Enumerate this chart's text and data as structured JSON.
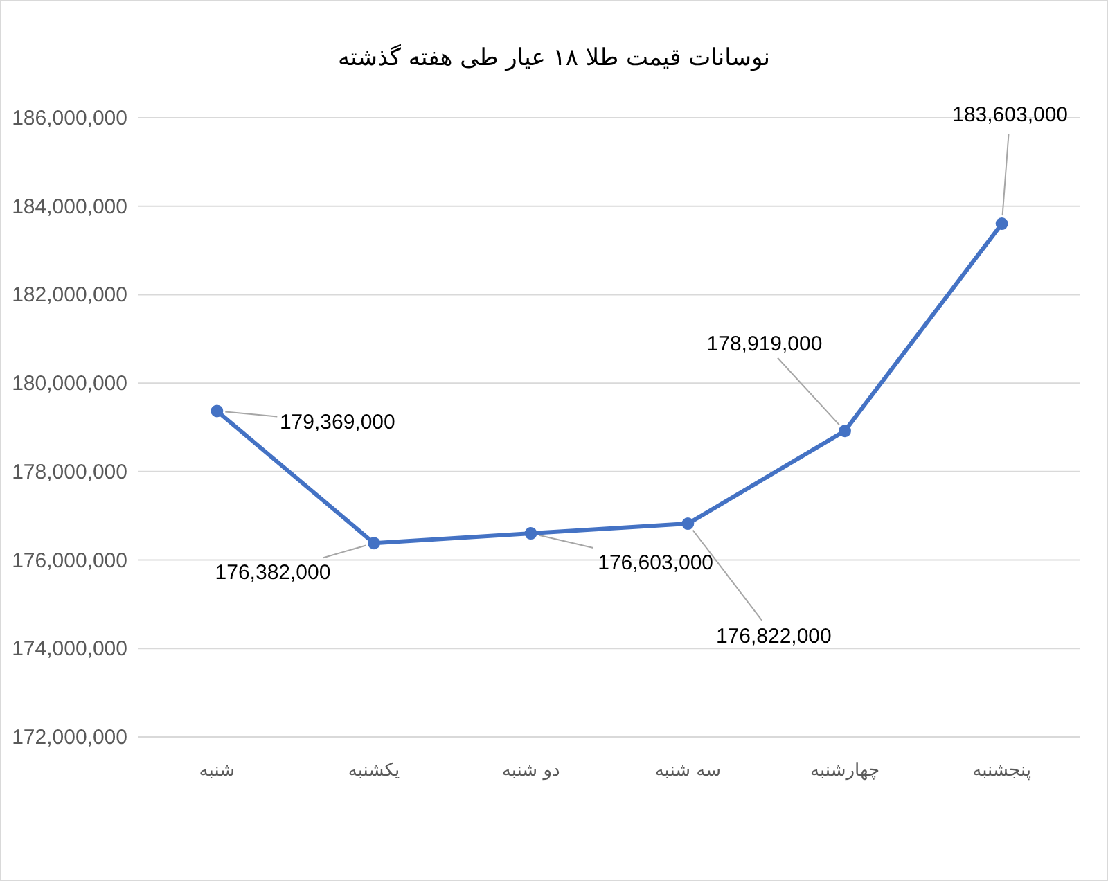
{
  "chart_data": {
    "type": "line",
    "title": "نوسانات قیمت طلا ۱۸ عیار طی هفته گذشته",
    "categories": [
      "شنبه",
      "یکشنبه",
      "دو شنبه",
      "سه شنبه",
      "چهارشنبه",
      "پنجشنبه"
    ],
    "series": [
      {
        "color": "#4472c4",
        "values": [
          179369000,
          176382000,
          176603000,
          176822000,
          178919000,
          183603000
        ],
        "value_labels": [
          "179,369,000",
          "176,382,000",
          "176,603,000",
          "176,822,000",
          "178,919,000",
          "183,603,000"
        ]
      }
    ],
    "ylim": [
      172000000,
      186000000
    ],
    "yticks": [
      {
        "value": 172000000,
        "label": "172,000,000"
      },
      {
        "value": 174000000,
        "label": "174,000,000"
      },
      {
        "value": 176000000,
        "label": "176,000,000"
      },
      {
        "value": 178000000,
        "label": "178,000,000"
      },
      {
        "value": 180000000,
        "label": "180,000,000"
      },
      {
        "value": 182000000,
        "label": "182,000,000"
      },
      {
        "value": 184000000,
        "label": "184,000,000"
      },
      {
        "value": 186000000,
        "label": "186,000,000"
      }
    ],
    "grid": "y",
    "marker": "circle",
    "line_style": "solid"
  }
}
